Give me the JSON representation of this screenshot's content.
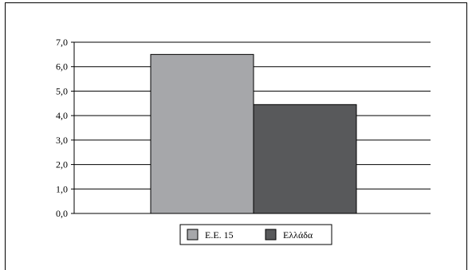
{
  "chart_data": {
    "type": "bar",
    "categories": [
      ""
    ],
    "series": [
      {
        "name": "Ε.Ε. 15",
        "values": [
          6.5
        ],
        "color": "#a6a7aa"
      },
      {
        "name": "Ελλάδα",
        "values": [
          4.45
        ],
        "color": "#58595b"
      }
    ],
    "ylim": [
      0,
      7
    ],
    "yticks": [
      "0,0",
      "1,0",
      "2,0",
      "3,0",
      "4,0",
      "5,0",
      "6,0",
      "7,0"
    ],
    "grid": true,
    "legend": "bottom"
  }
}
